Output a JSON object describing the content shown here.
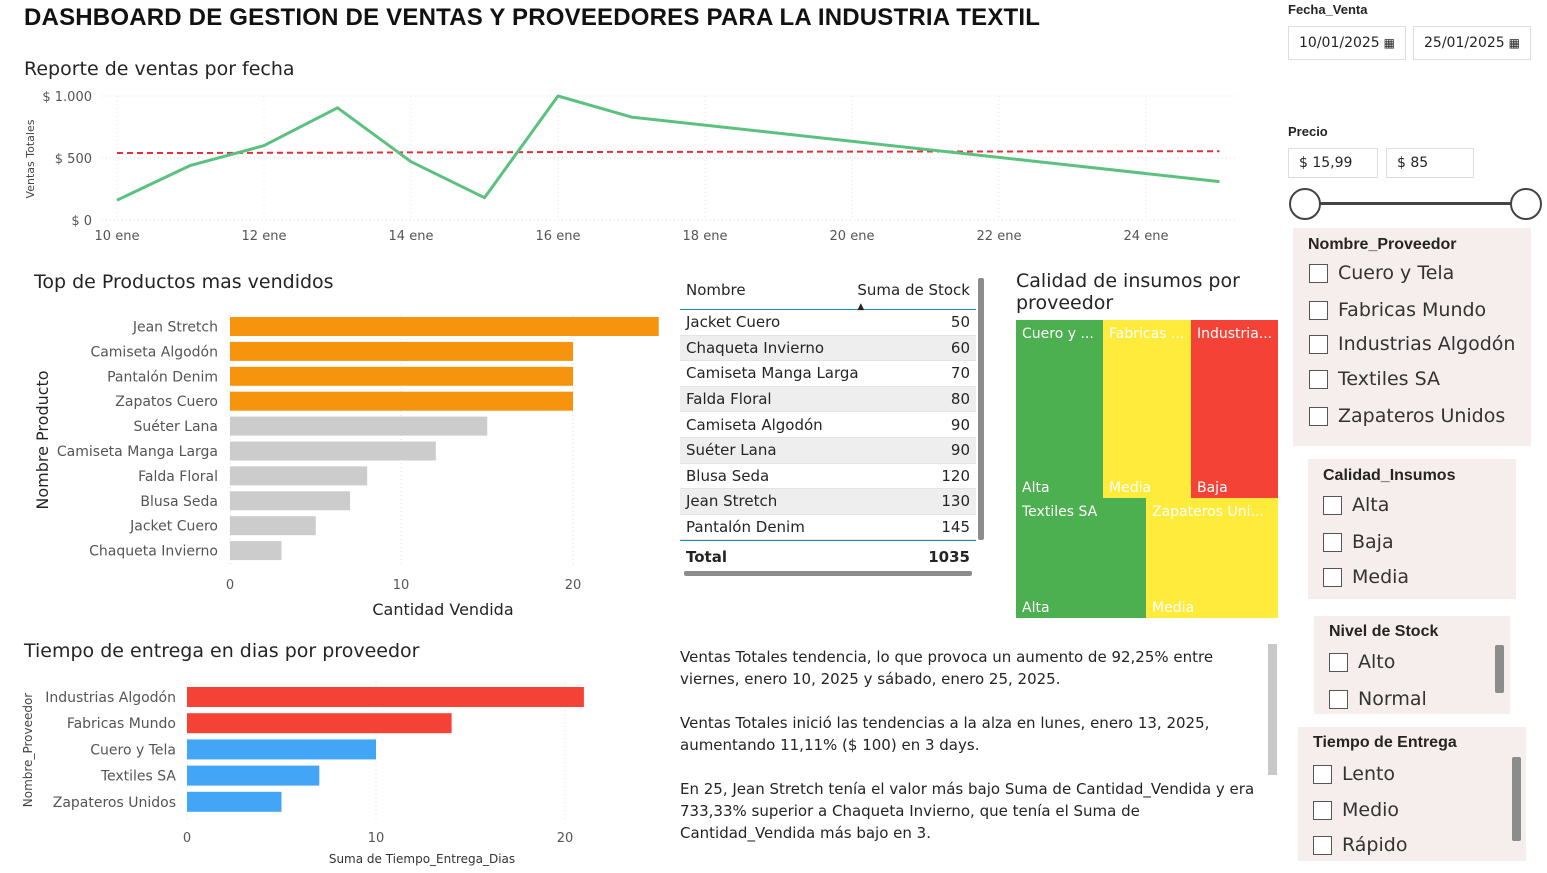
{
  "header": {
    "title": "DASHBOARD DE GESTION DE VENTAS Y PROVEEDORES PARA LA INDUSTRIA TEXTIL"
  },
  "line_chart": {
    "title": "Reporte de ventas por fecha",
    "ylabel": "Ventas Totales",
    "yticks": [
      "$ 1.000",
      "$ 500",
      "$ 0"
    ],
    "xticks": [
      "10 ene",
      "12 ene",
      "14 ene",
      "16 ene",
      "18 ene",
      "20 ene",
      "22 ene",
      "24 ene"
    ],
    "line_color": "#5bc17f",
    "trend_color": "#e0303a"
  },
  "top_products": {
    "title": "Top de Productos mas vendidos",
    "ylabel": "Nombre Producto",
    "xlabel": "Cantidad Vendida",
    "xticks": [
      "0",
      "10",
      "20"
    ],
    "highlight_color": "#f7940e",
    "base_color": "#cccccc"
  },
  "stock_table": {
    "col1": "Nombre",
    "col2": "Suma de Stock",
    "rows": [
      {
        "name": "Jacket Cuero",
        "value": "50"
      },
      {
        "name": "Chaqueta Invierno",
        "value": "60"
      },
      {
        "name": "Camiseta Manga Larga",
        "value": "70"
      },
      {
        "name": "Falda Floral",
        "value": "80"
      },
      {
        "name": "Camiseta Algodón",
        "value": "90"
      },
      {
        "name": "Suéter Lana",
        "value": "90"
      },
      {
        "name": "Blusa Seda",
        "value": "120"
      },
      {
        "name": "Jean Stretch",
        "value": "130"
      },
      {
        "name": "Pantalón Denim",
        "value": "145"
      }
    ],
    "total_label": "Total",
    "total_value": "1035"
  },
  "treemap": {
    "title_line1": "Calidad de insumos por",
    "title_line2": "proveedor",
    "cells": [
      {
        "name": "Cuero y ...",
        "quality": "Alta",
        "color": "#4caf50"
      },
      {
        "name": "Fabricas ...",
        "quality": "Media",
        "color": "#ffeb3b"
      },
      {
        "name": "Industria...",
        "quality": "Baja",
        "color": "#f44336"
      },
      {
        "name": "Textiles SA",
        "quality": "Alta",
        "color": "#4caf50"
      },
      {
        "name": "Zapateros Uni...",
        "quality": "Media",
        "color": "#ffeb3b"
      }
    ]
  },
  "delivery": {
    "title": "Tiempo de entrega en dias por proveedor",
    "ylabel": "Nombre_Proveedor",
    "xlabel": "Suma de Tiempo_Entrega_Dias",
    "xticks": [
      "0",
      "10",
      "20"
    ],
    "slow_color": "#f44336",
    "fast_color": "#42a5f5"
  },
  "narrative": {
    "p1": "Ventas Totales tendencia, lo que provoca un aumento de 92,25% entre viernes, enero 10, 2025 y sábado, enero 25, 2025.",
    "p2": "Ventas Totales inició las tendencias a la alza en lunes, enero 13, 2025, aumentando 11,11% ($ 100) en 3 days.",
    "p3": "En 25, Jean Stretch tenía el valor más bajo Suma de Cantidad_Vendida y era 733,33% superior a Chaqueta Invierno, que tenía el Suma de Cantidad_Vendida más bajo en 3."
  },
  "filters": {
    "fecha_label": "Fecha_Venta",
    "fecha_from": "10/01/2025",
    "fecha_to": "25/01/2025",
    "precio_label": "Precio",
    "precio_min": "$ 15,99",
    "precio_max": "$ 85",
    "proveedor": {
      "title": "Nombre_Proveedor",
      "options": [
        "Cuero y Tela",
        "Fabricas Mundo",
        "Industrias Algodón",
        "Textiles SA",
        "Zapateros Unidos"
      ]
    },
    "calidad": {
      "title": "Calidad_Insumos",
      "options": [
        "Alta",
        "Baja",
        "Media"
      ]
    },
    "stock": {
      "title": "Nivel de Stock",
      "options": [
        "Alto",
        "Normal"
      ]
    },
    "entrega": {
      "title": "Tiempo de Entrega",
      "options": [
        "Lento",
        "Medio",
        "Rápido"
      ]
    }
  },
  "chart_data": [
    {
      "type": "line",
      "title": "Reporte de ventas por fecha",
      "xlabel": "",
      "ylabel": "Ventas Totales",
      "x": [
        10,
        11,
        12,
        13,
        14,
        15,
        16,
        17,
        25
      ],
      "series": [
        {
          "name": "Ventas Totales",
          "values": [
            160,
            440,
            600,
            905,
            470,
            180,
            1000,
            830,
            310
          ]
        },
        {
          "name": "Tendencia",
          "values": [
            540,
            540,
            542,
            543,
            545,
            546,
            548,
            549,
            555
          ]
        }
      ],
      "ylim": [
        0,
        1000
      ],
      "xlim": [
        10,
        25
      ]
    },
    {
      "type": "bar",
      "orientation": "horizontal",
      "title": "Top de Productos mas vendidos",
      "xlabel": "Cantidad Vendida",
      "ylabel": "Nombre Producto",
      "categories": [
        "Jean Stretch",
        "Camiseta Algodón",
        "Pantalón Denim",
        "Zapatos Cuero",
        "Suéter Lana",
        "Camiseta Manga Larga",
        "Falda Floral",
        "Blusa Seda",
        "Jacket Cuero",
        "Chaqueta Invierno"
      ],
      "values": [
        25,
        20,
        20,
        20,
        15,
        12,
        8,
        7,
        5,
        3
      ],
      "highlight": [
        true,
        true,
        true,
        true,
        false,
        false,
        false,
        false,
        false,
        false
      ],
      "xlim": [
        0,
        25
      ]
    },
    {
      "type": "bar",
      "orientation": "horizontal",
      "title": "Tiempo de entrega en dias por proveedor",
      "xlabel": "Suma de Tiempo_Entrega_Dias",
      "ylabel": "Nombre_Proveedor",
      "categories": [
        "Industrias Algodón",
        "Fabricas Mundo",
        "Cuero y Tela",
        "Textiles SA",
        "Zapateros Unidos"
      ],
      "values": [
        21,
        14,
        10,
        7,
        5
      ],
      "slow": [
        true,
        true,
        false,
        false,
        false
      ],
      "xlim": [
        0,
        21
      ]
    }
  ]
}
